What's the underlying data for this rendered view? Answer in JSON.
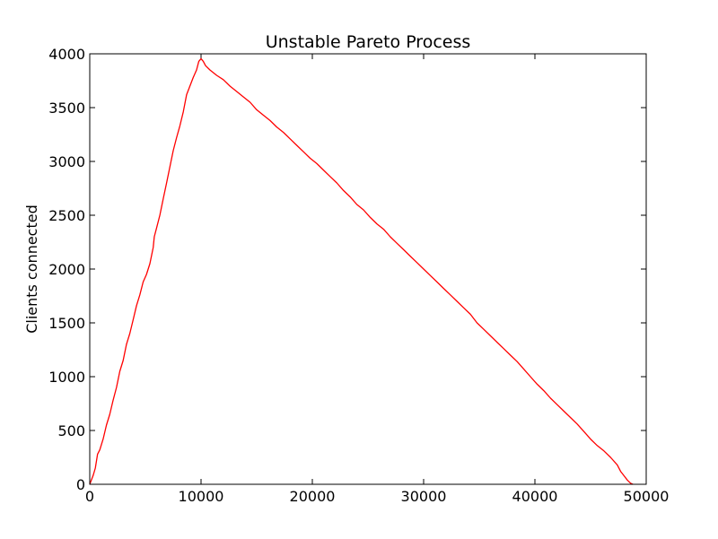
{
  "chart_data": {
    "type": "line",
    "title": "Unstable Pareto Process",
    "xlabel": "",
    "ylabel": "Clients connected",
    "xlim": [
      0,
      50000
    ],
    "ylim": [
      0,
      4000
    ],
    "xticks": [
      0,
      10000,
      20000,
      30000,
      40000,
      50000
    ],
    "yticks": [
      0,
      500,
      1000,
      1500,
      2000,
      2500,
      3000,
      3500,
      4000
    ],
    "xtick_labels": [
      "0",
      "10000",
      "20000",
      "30000",
      "40000",
      "50000"
    ],
    "ytick_labels": [
      "0",
      "500",
      "1000",
      "1500",
      "2000",
      "2500",
      "3000",
      "3500",
      "4000"
    ],
    "grid": false,
    "legend": "none",
    "series": [
      {
        "color": "#ff0000",
        "x": [
          0,
          300,
          500,
          700,
          900,
          1200,
          1500,
          1800,
          2100,
          2400,
          2700,
          3000,
          3300,
          3600,
          3900,
          4200,
          4500,
          4800,
          5100,
          5400,
          5700,
          5800,
          6000,
          6300,
          6600,
          6900,
          7200,
          7500,
          7800,
          8100,
          8400,
          8700,
          9000,
          9300,
          9600,
          9800,
          10000,
          10200,
          10400,
          10800,
          11400,
          12000,
          12600,
          13200,
          13800,
          14400,
          15000,
          15600,
          16200,
          16800,
          17400,
          18000,
          18600,
          19200,
          19800,
          20400,
          21000,
          21600,
          22200,
          22800,
          23400,
          24000,
          24600,
          25200,
          25800,
          26400,
          27000,
          27600,
          28200,
          28800,
          29400,
          30000,
          30600,
          31200,
          31800,
          32400,
          33000,
          33600,
          34200,
          34800,
          35400,
          36000,
          36600,
          37200,
          37800,
          38400,
          39000,
          39600,
          40200,
          40800,
          41400,
          42000,
          42600,
          43200,
          43800,
          44400,
          45000,
          45600,
          46200,
          46800,
          47400,
          47700,
          48000,
          48300,
          48600,
          48800
        ],
        "y": [
          0,
          80,
          150,
          280,
          320,
          420,
          550,
          650,
          780,
          900,
          1050,
          1150,
          1300,
          1400,
          1530,
          1660,
          1760,
          1880,
          1950,
          2050,
          2200,
          2300,
          2380,
          2500,
          2650,
          2800,
          2950,
          3100,
          3220,
          3330,
          3460,
          3620,
          3700,
          3780,
          3850,
          3930,
          3955,
          3930,
          3890,
          3850,
          3800,
          3760,
          3700,
          3650,
          3600,
          3550,
          3480,
          3430,
          3380,
          3320,
          3270,
          3210,
          3150,
          3090,
          3030,
          2980,
          2920,
          2860,
          2800,
          2730,
          2670,
          2600,
          2550,
          2480,
          2420,
          2370,
          2300,
          2240,
          2180,
          2120,
          2060,
          2000,
          1940,
          1880,
          1820,
          1760,
          1700,
          1640,
          1580,
          1500,
          1440,
          1380,
          1320,
          1260,
          1200,
          1140,
          1070,
          1000,
          930,
          870,
          800,
          740,
          680,
          620,
          560,
          490,
          420,
          360,
          310,
          250,
          180,
          120,
          80,
          40,
          10,
          0
        ]
      }
    ]
  }
}
